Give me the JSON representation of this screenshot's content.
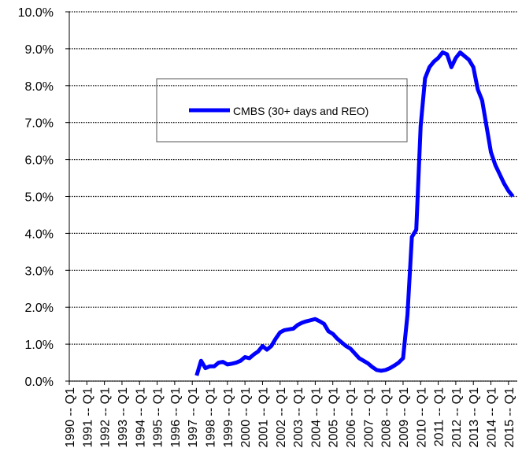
{
  "chart_data": {
    "type": "line",
    "categories": [
      "1990 -- Q1",
      null,
      null,
      null,
      "1991 -- Q1",
      null,
      null,
      null,
      "1992 -- Q1",
      null,
      null,
      null,
      "1993 -- Q1",
      null,
      null,
      null,
      "1994 -- Q1",
      null,
      null,
      null,
      "1995 -- Q1",
      null,
      null,
      null,
      "1996 -- Q1",
      null,
      null,
      null,
      "1997 -- Q1",
      null,
      null,
      null,
      "1998 -- Q1",
      null,
      null,
      null,
      "1999 -- Q1",
      null,
      null,
      null,
      "2000 -- Q1",
      null,
      null,
      null,
      "2001 -- Q1",
      null,
      null,
      null,
      "2002 -- Q1",
      null,
      null,
      null,
      "2003 -- Q1",
      null,
      null,
      null,
      "2004 -- Q1",
      null,
      null,
      null,
      "2005 -- Q1",
      null,
      null,
      null,
      "2006 -- Q1",
      null,
      null,
      null,
      "2007 -- Q1",
      null,
      null,
      null,
      "2008 -- Q1",
      null,
      null,
      null,
      "2009 -- Q1",
      null,
      null,
      null,
      "2010 -- Q1",
      null,
      null,
      null,
      "2011 -- Q1",
      null,
      null,
      null,
      "2012 -- Q1",
      null,
      null,
      null,
      "2013 -- Q1",
      null,
      null,
      null,
      "2014 -- Q1",
      null,
      null,
      null,
      "2015 -- Q1",
      null
    ],
    "series": [
      {
        "name": "CMBS (30+ days and REO)",
        "color": "#0000ff",
        "values": [
          null,
          null,
          null,
          null,
          null,
          null,
          null,
          null,
          null,
          null,
          null,
          null,
          null,
          null,
          null,
          null,
          null,
          null,
          null,
          null,
          null,
          null,
          null,
          null,
          null,
          null,
          null,
          null,
          null,
          0.15,
          0.55,
          0.35,
          0.4,
          0.4,
          0.5,
          0.52,
          0.45,
          0.47,
          0.5,
          0.55,
          0.65,
          0.62,
          0.72,
          0.8,
          0.95,
          0.85,
          0.95,
          1.15,
          1.32,
          1.38,
          1.4,
          1.42,
          1.52,
          1.58,
          1.62,
          1.65,
          1.68,
          1.62,
          1.55,
          1.35,
          1.28,
          1.15,
          1.05,
          0.95,
          0.88,
          0.75,
          0.62,
          0.55,
          0.48,
          0.38,
          0.3,
          0.28,
          0.3,
          0.35,
          0.42,
          0.5,
          0.62,
          1.8,
          3.9,
          4.1,
          6.9,
          8.2,
          8.5,
          8.65,
          8.75,
          8.9,
          8.85,
          8.5,
          8.75,
          8.9,
          8.8,
          8.7,
          8.5,
          7.9,
          7.6,
          6.9,
          6.2,
          5.85,
          5.6,
          5.35,
          5.15,
          5.0
        ]
      }
    ],
    "ylim": [
      0,
      10
    ],
    "yticks": [
      {
        "value": 0,
        "label": "0.0%"
      },
      {
        "value": 1,
        "label": "1.0%"
      },
      {
        "value": 2,
        "label": "2.0%"
      },
      {
        "value": 3,
        "label": "3.0%"
      },
      {
        "value": 4,
        "label": "4.0%"
      },
      {
        "value": 5,
        "label": "5.0%"
      },
      {
        "value": 6,
        "label": "6.0%"
      },
      {
        "value": 7,
        "label": "7.0%"
      },
      {
        "value": 8,
        "label": "8.0%"
      },
      {
        "value": 9,
        "label": "9.0%"
      },
      {
        "value": 10,
        "label": "10.0%"
      }
    ],
    "grid": true
  }
}
